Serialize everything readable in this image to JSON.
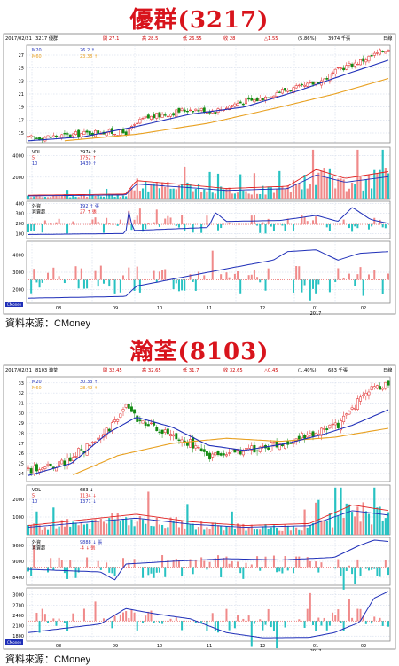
{
  "charts": [
    {
      "title": "優群(3217)",
      "source": "資料來源：CMoney",
      "header": {
        "date": "2017/02/21",
        "code": "3217 優群",
        "open_label": "開",
        "open": "27.1",
        "high_label": "高",
        "high": "28.5",
        "low_label": "低",
        "low": "26.55",
        "close_label": "收",
        "close": "28",
        "change": "△1.55",
        "pct": "(5.86%)",
        "volume": "3974 千張",
        "period": "日線"
      },
      "legends": {
        "price": [
          {
            "name": "M20",
            "value": "26.2 ↑"
          },
          {
            "name": "M60",
            "value": "23.38 ↑"
          }
        ],
        "volume": [
          {
            "name": "VOL",
            "value": "3974 ↑"
          },
          {
            "name": "5",
            "value": "1752 ↑"
          },
          {
            "name": "10",
            "value": "1439 ↑"
          }
        ],
        "p3": [
          {
            "name": "外資",
            "value": "192 ↑ 張"
          },
          {
            "name": "買賣超",
            "value": "27 ↑ 張"
          }
        ],
        "p4": []
      },
      "months": [
        "08",
        "09",
        "10",
        "11",
        "12",
        "01",
        "02"
      ],
      "year_label": "2017",
      "corner_label": "CMoney",
      "chart_data": {
        "type": "line",
        "price_axis": {
          "ticks": [
            "27",
            "25",
            "23",
            "21",
            "19",
            "17",
            "15"
          ],
          "range": [
            13.5,
            28.5
          ]
        },
        "volume_axis": {
          "ticks": [
            "4000",
            "2000"
          ],
          "range": [
            0,
            4800
          ]
        },
        "p3_axis": {
          "ticks": [
            "400",
            "300",
            "200",
            "100"
          ],
          "range": [
            50,
            420
          ]
        },
        "p4_axis": {
          "ticks": [
            "4000",
            "3000",
            "2000"
          ],
          "range": [
            1200,
            4800
          ]
        },
        "close_anchors": [
          [
            0,
            14.2
          ],
          [
            0.1,
            14.6
          ],
          [
            0.2,
            15.2
          ],
          [
            0.27,
            15.0
          ],
          [
            0.32,
            17.2
          ],
          [
            0.37,
            17.8
          ],
          [
            0.45,
            18.7
          ],
          [
            0.52,
            18.4
          ],
          [
            0.58,
            19.6
          ],
          [
            0.64,
            20.2
          ],
          [
            0.7,
            21.5
          ],
          [
            0.76,
            22.0
          ],
          [
            0.82,
            23.2
          ],
          [
            0.87,
            25.0
          ],
          [
            0.92,
            26.0
          ],
          [
            0.96,
            27.0
          ],
          [
            1.0,
            28.0
          ]
        ],
        "m20_anchors": [
          [
            0,
            13.8
          ],
          [
            0.15,
            14.4
          ],
          [
            0.3,
            16.0
          ],
          [
            0.45,
            17.9
          ],
          [
            0.6,
            19.0
          ],
          [
            0.75,
            21.5
          ],
          [
            0.88,
            24.0
          ],
          [
            1.0,
            26.2
          ]
        ],
        "m60_anchors": [
          [
            0.1,
            13.8
          ],
          [
            0.3,
            14.8
          ],
          [
            0.5,
            16.5
          ],
          [
            0.7,
            19.0
          ],
          [
            0.85,
            21.0
          ],
          [
            1.0,
            23.38
          ]
        ],
        "vol_base": [
          [
            0,
            300
          ],
          [
            0.27,
            400
          ],
          [
            0.3,
            1600
          ],
          [
            0.45,
            1200
          ],
          [
            0.55,
            900
          ],
          [
            0.72,
            1100
          ],
          [
            0.8,
            2600
          ],
          [
            0.88,
            1800
          ],
          [
            1.0,
            2400
          ]
        ],
        "p3_anchors": [
          [
            0,
            90
          ],
          [
            0.27,
            100
          ],
          [
            0.28,
            340
          ],
          [
            0.29,
            130
          ],
          [
            0.5,
            160
          ],
          [
            0.52,
            310
          ],
          [
            0.55,
            220
          ],
          [
            0.7,
            230
          ],
          [
            0.8,
            280
          ],
          [
            0.86,
            220
          ],
          [
            0.9,
            360
          ],
          [
            0.95,
            240
          ],
          [
            1.0,
            200
          ]
        ],
        "p4_anchors": [
          [
            0,
            1500
          ],
          [
            0.27,
            1600
          ],
          [
            0.3,
            2200
          ],
          [
            0.45,
            2800
          ],
          [
            0.55,
            3200
          ],
          [
            0.68,
            3700
          ],
          [
            0.72,
            4200
          ],
          [
            0.8,
            4300
          ],
          [
            0.86,
            3700
          ],
          [
            0.92,
            4100
          ],
          [
            1.0,
            4200
          ]
        ]
      }
    },
    {
      "title": "瀚荃(8103)",
      "source": "資料來源：CMoney",
      "header": {
        "date": "2017/02/21",
        "code": "8103 瀚荃",
        "open_label": "開",
        "open": "32.45",
        "high_label": "高",
        "high": "32.65",
        "low_label": "低",
        "low": "31.7",
        "close_label": "收",
        "close": "32.65",
        "change": "△0.45",
        "pct": "(1.40%)",
        "volume": "683 千張",
        "period": "日線"
      },
      "legends": {
        "price": [
          {
            "name": "M20",
            "value": "30.33 ↑"
          },
          {
            "name": "M60",
            "value": "28.49 ↑"
          }
        ],
        "volume": [
          {
            "name": "VOL",
            "value": "683 ↓"
          },
          {
            "name": "5",
            "value": "1134 ↓"
          },
          {
            "name": "10",
            "value": "1371 ↓"
          }
        ],
        "p3": [
          {
            "name": "外資",
            "value": "9888 ↓ 張"
          },
          {
            "name": "買賣超",
            "value": "-4 ↓ 張"
          }
        ],
        "p4": []
      },
      "months": [
        "08",
        "09",
        "10",
        "11",
        "12",
        "01",
        "02"
      ],
      "year_label": "2017",
      "corner_label": "CMoney",
      "chart_data": {
        "type": "line",
        "price_axis": {
          "ticks": [
            "33",
            "32",
            "31",
            "30",
            "29",
            "28",
            "27",
            "26",
            "25",
            "24"
          ],
          "range": [
            23.2,
            33.6
          ]
        },
        "volume_axis": {
          "ticks": [
            "2000",
            "1000"
          ],
          "range": [
            0,
            2800
          ]
        },
        "p3_axis": {
          "ticks": [
            "9600",
            "9000",
            "8400"
          ],
          "range": [
            8100,
            9900
          ]
        },
        "p4_axis": {
          "ticks": [
            "3000",
            "2700",
            "2400",
            "2100",
            "1800"
          ],
          "range": [
            1650,
            3200
          ]
        },
        "close_anchors": [
          [
            0,
            24.3
          ],
          [
            0.1,
            25.2
          ],
          [
            0.2,
            27.5
          ],
          [
            0.27,
            30.5
          ],
          [
            0.3,
            29.5
          ],
          [
            0.37,
            28.2
          ],
          [
            0.45,
            27.0
          ],
          [
            0.5,
            25.8
          ],
          [
            0.55,
            26.0
          ],
          [
            0.62,
            26.4
          ],
          [
            0.7,
            27.1
          ],
          [
            0.78,
            27.8
          ],
          [
            0.84,
            28.5
          ],
          [
            0.88,
            29.4
          ],
          [
            0.92,
            31.5
          ],
          [
            0.96,
            32.8
          ],
          [
            1.0,
            32.65
          ]
        ],
        "m20_anchors": [
          [
            0,
            23.8
          ],
          [
            0.12,
            25.0
          ],
          [
            0.22,
            28.0
          ],
          [
            0.3,
            29.6
          ],
          [
            0.4,
            28.6
          ],
          [
            0.5,
            26.8
          ],
          [
            0.6,
            26.3
          ],
          [
            0.72,
            27.0
          ],
          [
            0.82,
            27.9
          ],
          [
            0.9,
            28.8
          ],
          [
            1.0,
            30.33
          ]
        ],
        "m60_anchors": [
          [
            0.12,
            23.8
          ],
          [
            0.25,
            25.8
          ],
          [
            0.4,
            27.0
          ],
          [
            0.55,
            27.5
          ],
          [
            0.7,
            27.2
          ],
          [
            0.85,
            27.6
          ],
          [
            1.0,
            28.49
          ]
        ],
        "vol_base": [
          [
            0,
            500
          ],
          [
            0.2,
            900
          ],
          [
            0.3,
            1100
          ],
          [
            0.45,
            700
          ],
          [
            0.6,
            500
          ],
          [
            0.78,
            600
          ],
          [
            0.9,
            1600
          ],
          [
            1.0,
            1300
          ]
        ],
        "p3_anchors": [
          [
            0,
            8700
          ],
          [
            0.2,
            8600
          ],
          [
            0.24,
            8300
          ],
          [
            0.27,
            8900
          ],
          [
            0.4,
            9000
          ],
          [
            0.55,
            9100
          ],
          [
            0.7,
            9050
          ],
          [
            0.85,
            9150
          ],
          [
            0.92,
            9600
          ],
          [
            0.96,
            9800
          ],
          [
            1.0,
            9750
          ]
        ],
        "p4_anchors": [
          [
            0,
            1900
          ],
          [
            0.12,
            2050
          ],
          [
            0.2,
            2150
          ],
          [
            0.27,
            2600
          ],
          [
            0.35,
            2450
          ],
          [
            0.45,
            2300
          ],
          [
            0.55,
            1900
          ],
          [
            0.65,
            1750
          ],
          [
            0.78,
            1760
          ],
          [
            0.85,
            1900
          ],
          [
            0.92,
            2200
          ],
          [
            0.96,
            2900
          ],
          [
            1.0,
            3100
          ]
        ]
      }
    }
  ]
}
